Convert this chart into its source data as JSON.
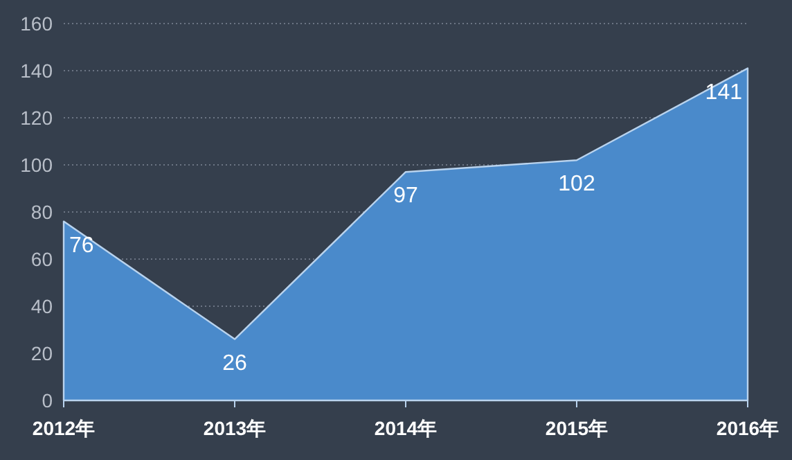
{
  "chart_data": {
    "type": "area",
    "categories": [
      "2012年",
      "2013年",
      "2014年",
      "2015年",
      "2016年"
    ],
    "values": [
      76,
      26,
      97,
      102,
      141
    ],
    "color": "#4a8acb",
    "ylim": [
      0,
      160
    ],
    "yticks": [
      0,
      20,
      40,
      60,
      80,
      100,
      120,
      140,
      160
    ],
    "grid": "y",
    "data_labels": true
  }
}
